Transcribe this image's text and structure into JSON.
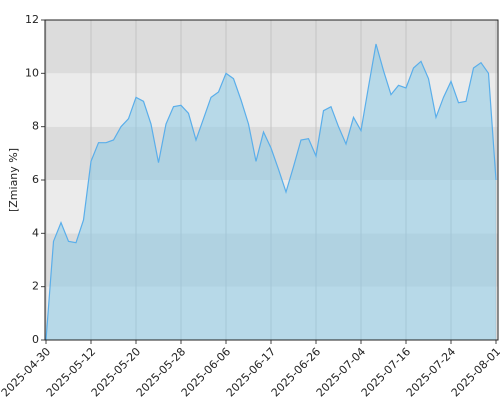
{
  "chart_data": {
    "type": "area",
    "ylabel": "[Zmiany %]",
    "categories": [
      "2025-04-30",
      null,
      null,
      null,
      null,
      null,
      "2025-05-12",
      null,
      null,
      null,
      null,
      null,
      "2025-05-20",
      null,
      null,
      null,
      null,
      null,
      "2025-05-28",
      null,
      null,
      null,
      null,
      null,
      "2025-06-06",
      null,
      null,
      null,
      null,
      null,
      "2025-06-17",
      null,
      null,
      null,
      null,
      null,
      "2025-06-26",
      null,
      null,
      null,
      null,
      null,
      "2025-07-04",
      null,
      null,
      null,
      null,
      null,
      "2025-07-16",
      null,
      null,
      null,
      null,
      null,
      "2025-07-24",
      null,
      null,
      null,
      null,
      null,
      "2025-08-01"
    ],
    "values": [
      0,
      3.7,
      4.4,
      3.7,
      3.65,
      4.5,
      6.7,
      7.4,
      7.4,
      7.5,
      8.0,
      8.3,
      9.1,
      8.95,
      8.1,
      6.65,
      8.1,
      8.75,
      8.8,
      8.5,
      7.5,
      8.3,
      9.1,
      9.3,
      10.0,
      9.8,
      9.0,
      8.1,
      6.7,
      7.8,
      7.2,
      6.4,
      5.55,
      6.5,
      7.5,
      7.55,
      6.9,
      8.6,
      8.75,
      8.0,
      7.35,
      8.35,
      7.85,
      9.5,
      11.1,
      10.1,
      9.2,
      9.55,
      9.45,
      10.2,
      10.45,
      9.8,
      8.35,
      9.1,
      9.7,
      8.9,
      8.95,
      10.2,
      10.4,
      10.0,
      6.0
    ],
    "color": "#5aaeea",
    "fill_color": "#8ccbe6",
    "ylim": [
      0,
      12
    ],
    "yticks": [
      0,
      2,
      4,
      6,
      8,
      10,
      12
    ],
    "band_colors": [
      "#ebebeb",
      "#dcdcdc"
    ],
    "grid": true
  }
}
